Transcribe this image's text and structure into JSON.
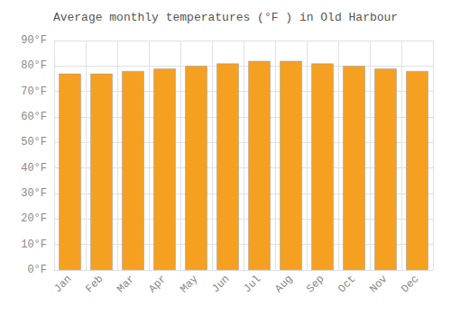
{
  "chart_data": {
    "type": "bar",
    "title": "Average monthly temperatures (°F ) in Old Harbour",
    "categories": [
      "Jan",
      "Feb",
      "Mar",
      "Apr",
      "May",
      "Jun",
      "Jul",
      "Aug",
      "Sep",
      "Oct",
      "Nov",
      "Dec"
    ],
    "values": [
      77,
      77,
      78,
      79,
      80,
      81,
      82,
      82,
      81,
      80,
      79,
      78
    ],
    "color": "#F5A020",
    "ylim": [
      0,
      90
    ],
    "yticks": [
      {
        "value": 0,
        "label": "0°F"
      },
      {
        "value": 10,
        "label": "10°F"
      },
      {
        "value": 20,
        "label": "20°F"
      },
      {
        "value": 30,
        "label": "30°F"
      },
      {
        "value": 40,
        "label": "40°F"
      },
      {
        "value": 50,
        "label": "50°F"
      },
      {
        "value": 60,
        "label": "60°F"
      },
      {
        "value": 70,
        "label": "70°F"
      },
      {
        "value": 80,
        "label": "80°F"
      },
      {
        "value": 90,
        "label": "90°F"
      }
    ],
    "grid": true
  }
}
